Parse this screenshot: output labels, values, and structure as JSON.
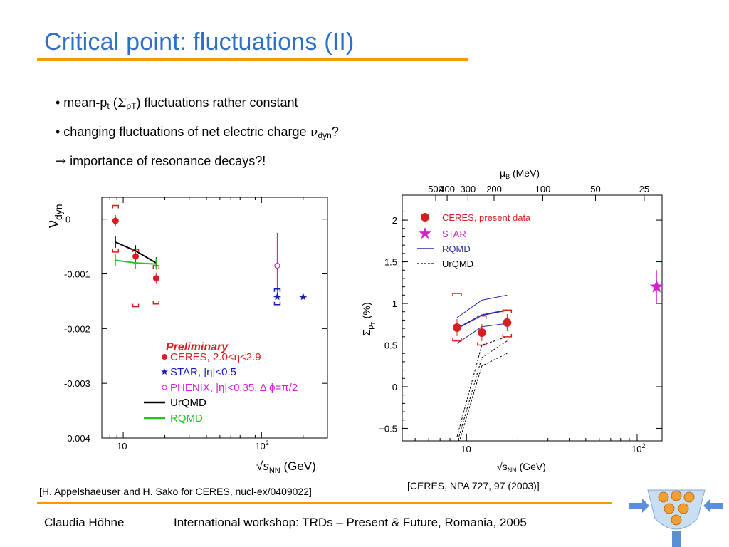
{
  "slide": {
    "title": "Critical point: fluctuations (II)",
    "bullets": [
      {
        "prefix": "• mean-p",
        "sub1": "t",
        "mid": " (",
        "sym": "Σ",
        "sub2": "pT",
        "suffix": ") fluctuations rather constant"
      },
      {
        "prefix": "• changing fluctuations of net electric charge ",
        "sym": "ν",
        "sub": "dyn",
        "suffix": "?"
      },
      {
        "arrow": "→",
        "text": " importance of resonance decays?!"
      }
    ],
    "caption_left": "[H. Appelshaeuser and H. Sako for CERES, nucl-ex/0409022]",
    "caption_right": "[CERES, NPA 727, 97 (2003)]",
    "footer_author": "Claudia Höhne",
    "footer_event": "International workshop: TRDs – Present & Future, Romania, 2005",
    "colors": {
      "title": "#2d6fc9",
      "rule": "#f59a00"
    },
    "logo_icon": "detector-logo-icon"
  },
  "chart_data": [
    {
      "type": "scatter",
      "ylabel_sym": "ν",
      "ylabel_sub": "dyn",
      "xlabel_sym": "√",
      "xlabel_var": "s",
      "xlabel_sub": "NN",
      "xlabel_unit": " (GeV)",
      "x_scale": "log",
      "xlim": [
        7,
        300
      ],
      "ylim": [
        -0.004,
        0.0004
      ],
      "yticks": [
        {
          "v": 0,
          "label": "0"
        },
        {
          "v": -0.001,
          "label": "-0.001"
        },
        {
          "v": -0.002,
          "label": "-0.002"
        },
        {
          "v": -0.003,
          "label": "-0.003"
        },
        {
          "v": -0.004,
          "label": "-0.004"
        }
      ],
      "xticks": [
        {
          "v": 10,
          "label": "10"
        },
        {
          "v": 100,
          "label": "10",
          "sup": "2"
        }
      ],
      "legend_title": "Preliminary",
      "legend": [
        {
          "text": "CERES, 2.0<η<2.9",
          "color": "#d42020"
        },
        {
          "text": "STAR, |η|<0.5",
          "color": "#1a1ab8"
        },
        {
          "text": "PHENIX, |η|<0.35, Δ ϕ=π/2",
          "color": "#cc22cc"
        },
        {
          "text": "UrQMD",
          "color": "#000000"
        },
        {
          "text": "RQMD",
          "color": "#22c422"
        }
      ],
      "series": [
        {
          "name": "CERES, 2.0<η<2.9",
          "color": "#d42020",
          "x": [
            8.8,
            12.3,
            17.3
          ],
          "y": [
            -3e-05,
            -0.00068,
            -0.00108
          ],
          "sys_lo": [
            -0.0006,
            -0.0016,
            -0.00155
          ],
          "sys_hi": [
            0.00025,
            -0.00055,
            -0.00085
          ]
        },
        {
          "name": "STAR, |η|<0.5",
          "color": "#1a1ab8",
          "x": [
            130,
            200
          ],
          "y": [
            -0.00142,
            -0.00142
          ]
        },
        {
          "name": "PHENIX, |η|<0.35, Δ ϕ=π/2",
          "color": "#cc22cc",
          "x": [
            130
          ],
          "y": [
            -0.00085
          ],
          "err": [
            0.0006
          ]
        },
        {
          "name": "UrQMD",
          "color": "#000000",
          "x": [
            8.8,
            12.3,
            17.3
          ],
          "y": [
            -0.00042,
            -0.00058,
            -0.0008
          ]
        },
        {
          "name": "RQMD",
          "color": "#22c422",
          "x": [
            8.8,
            12.3,
            17.3
          ],
          "y": [
            -0.00075,
            -0.0008,
            -0.00082
          ]
        }
      ]
    },
    {
      "type": "scatter",
      "ylabel_sym": "Σ",
      "ylabel_sub": "p",
      "ylabel_subsub": "T",
      "ylabel_unit": " (%)",
      "xlabel_sym": "√",
      "xlabel_var": "s",
      "xlabel_sub": "NN",
      "xlabel_unit": " (GeV)",
      "top_axis_label_sym": "μ",
      "top_axis_label_sub": "B",
      "top_axis_label_unit": " (MeV)",
      "top_ticks": [
        {
          "label": "500",
          "x": 6.6
        },
        {
          "label": "400",
          "x": 7.7
        },
        {
          "label": "300",
          "x": 10.2
        },
        {
          "label": "200",
          "x": 14.5
        },
        {
          "label": "100",
          "x": 28
        },
        {
          "label": "50",
          "x": 57
        },
        {
          "label": "25",
          "x": 110
        }
      ],
      "x_scale": "log",
      "xlim": [
        4.2,
        140
      ],
      "ylim": [
        -0.65,
        2.3
      ],
      "yticks": [
        {
          "v": 2,
          "label": "2"
        },
        {
          "v": 1.5,
          "label": "1.5"
        },
        {
          "v": 1,
          "label": "1"
        },
        {
          "v": 0.5,
          "label": "0.5"
        },
        {
          "v": 0,
          "label": "0"
        },
        {
          "v": -0.5,
          "label": "−0.5"
        }
      ],
      "xticks": [
        {
          "v": 10,
          "label": "10"
        },
        {
          "v": 100,
          "label": "10",
          "sup": "2"
        }
      ],
      "legend": [
        {
          "text": "CERES, present data",
          "color": "#d42020"
        },
        {
          "text": "STAR",
          "color": "#d322c8"
        },
        {
          "text": "RQMD",
          "color": "#2a2ab4"
        },
        {
          "text": "UrQMD",
          "color": "#000000"
        }
      ],
      "series": [
        {
          "name": "CERES, present data",
          "color": "#d42020",
          "x": [
            8.8,
            12.3,
            17.3
          ],
          "y": [
            0.71,
            0.65,
            0.77
          ],
          "sys_lo": [
            0.55,
            0.5,
            0.6
          ],
          "sys_hi": [
            1.12,
            0.85,
            0.92
          ]
        },
        {
          "name": "STAR",
          "color": "#d322c8",
          "x": [
            130
          ],
          "y": [
            1.2
          ],
          "err": [
            0.2
          ]
        },
        {
          "name": "RQMD",
          "color": "#2a2ab4",
          "x": [
            8.8,
            12.3,
            17.3
          ],
          "y": [
            0.7,
            0.86,
            0.92
          ],
          "band_lo": [
            0.52,
            0.72,
            0.76
          ],
          "band_hi": [
            0.83,
            1.04,
            1.1
          ]
        },
        {
          "name": "UrQMD",
          "color": "#000000",
          "x": [
            8.8,
            12.3,
            17.3
          ],
          "y": [
            -0.68,
            0.35,
            0.55
          ],
          "band_lo": [
            -0.75,
            0.25,
            0.4
          ],
          "band_hi": [
            -0.6,
            0.5,
            0.6
          ]
        }
      ]
    }
  ]
}
